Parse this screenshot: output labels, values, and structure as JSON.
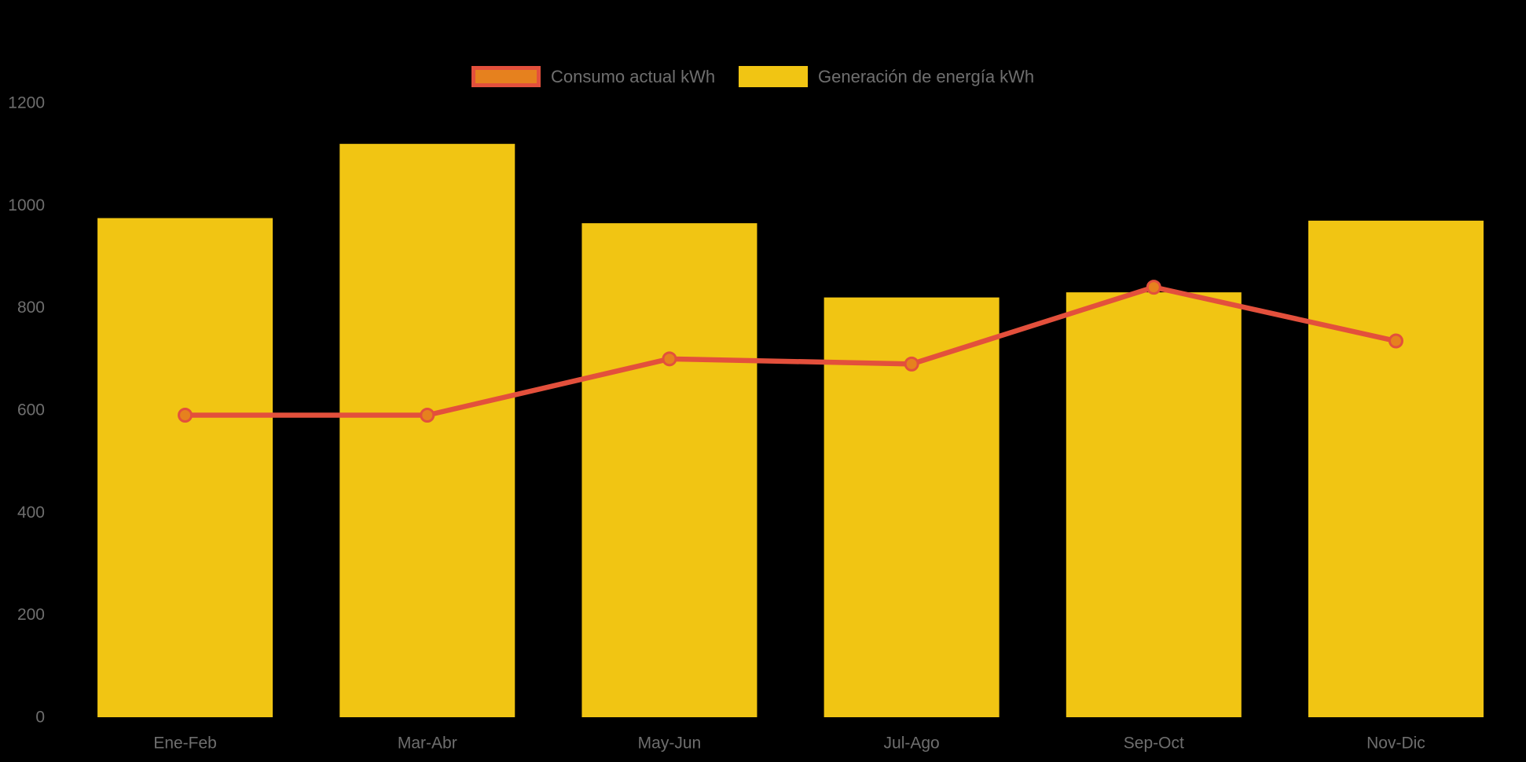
{
  "background_color": "#000000",
  "legend": {
    "text_color": "#6F6F6F",
    "items": [
      {
        "label": "Consumo actual kWh",
        "swatch_fill": "#E6811E",
        "swatch_border": "#E3503C"
      },
      {
        "label": "Generación de energía kWh",
        "swatch_fill": "#F1C513",
        "swatch_border": "#F1C513"
      }
    ]
  },
  "axis": {
    "tick_color": "#6E6E6E",
    "y_tick_labels": [
      "0",
      "200",
      "400",
      "600",
      "800",
      "1000",
      "1200"
    ],
    "x_labels": [
      "Ene-Feb",
      "Mar-Abr",
      "May-Jun",
      "Jul-Ago",
      "Sep-Oct",
      "Nov-Dic"
    ]
  },
  "chart_data": {
    "type": "bar+line",
    "title": "",
    "xlabel": "",
    "ylabel": "",
    "categories": [
      "Ene-Feb",
      "Mar-Abr",
      "May-Jun",
      "Jul-Ago",
      "Sep-Oct",
      "Nov-Dic"
    ],
    "series": [
      {
        "name": "Generación de energía kWh",
        "type": "bar",
        "color": "#F1C513",
        "values": [
          975,
          1120,
          965,
          820,
          830,
          970
        ]
      },
      {
        "name": "Consumo actual kWh",
        "type": "line",
        "color": "#E3503C",
        "marker_fill": "#E6811E",
        "marker_stroke": "#E3503C",
        "values": [
          590,
          590,
          700,
          690,
          840,
          735
        ]
      }
    ],
    "ylim": [
      0,
      1200
    ],
    "y_ticks": [
      0,
      200,
      400,
      600,
      800,
      1000,
      1200
    ],
    "grid": false,
    "axis_lines": false,
    "legend_position": "top-center",
    "plot_background": "#000000"
  }
}
